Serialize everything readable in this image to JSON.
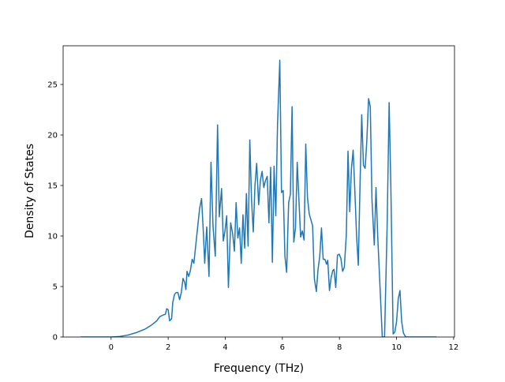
{
  "chart_data": {
    "type": "line",
    "xlabel": "Frequency (THz)",
    "ylabel": "Density of States",
    "x": [
      -1.06,
      0,
      0.3,
      0.6,
      0.9,
      1.2,
      1.4,
      1.6,
      1.7,
      1.8,
      1.9,
      1.95,
      2.0,
      2.05,
      2.12,
      2.16,
      2.22,
      2.28,
      2.34,
      2.4,
      2.46,
      2.52,
      2.58,
      2.62,
      2.66,
      2.72,
      2.78,
      2.84,
      2.9,
      3.1,
      3.17,
      3.23,
      3.28,
      3.35,
      3.43,
      3.5,
      3.57,
      3.65,
      3.73,
      3.79,
      3.87,
      3.93,
      3.99,
      4.05,
      4.11,
      4.19,
      4.26,
      4.32,
      4.38,
      4.44,
      4.5,
      4.56,
      4.62,
      4.68,
      4.74,
      4.8,
      4.86,
      4.92,
      4.98,
      5.04,
      5.1,
      5.17,
      5.23,
      5.29,
      5.35,
      5.41,
      5.47,
      5.53,
      5.59,
      5.65,
      5.71,
      5.77,
      5.83,
      5.91,
      5.97,
      6.03,
      6.09,
      6.15,
      6.22,
      6.28,
      6.34,
      6.4,
      6.46,
      6.52,
      6.58,
      6.64,
      6.7,
      6.76,
      6.82,
      6.88,
      6.94,
      7.0,
      7.06,
      7.12,
      7.19,
      7.25,
      7.31,
      7.37,
      7.43,
      7.49,
      7.55,
      7.59,
      7.65,
      7.71,
      7.77,
      7.81,
      7.87,
      7.93,
      7.99,
      8.05,
      8.11,
      8.17,
      8.24,
      8.3,
      8.36,
      8.42,
      8.48,
      8.54,
      8.6,
      8.66,
      8.72,
      8.78,
      8.84,
      8.9,
      8.96,
      9.02,
      9.08,
      9.14,
      9.22,
      9.28,
      9.34,
      9.42,
      9.5,
      9.58,
      9.67,
      9.74,
      9.8,
      9.88,
      9.94,
      10.0,
      10.06,
      10.12,
      10.18,
      10.24,
      10.32,
      11.4
    ],
    "series": [
      {
        "name": "DOS",
        "color": "#1f77b4",
        "values": [
          0,
          0,
          0.05,
          0.2,
          0.45,
          0.8,
          1.15,
          1.6,
          2.0,
          2.15,
          2.25,
          2.8,
          2.7,
          1.6,
          1.8,
          3.4,
          4.2,
          4.4,
          4.4,
          3.7,
          4.4,
          5.8,
          5.4,
          4.7,
          6.5,
          6.0,
          6.6,
          7.7,
          7.3,
          12.7,
          13.7,
          10.5,
          7.3,
          10.9,
          6.0,
          17.3,
          11.0,
          8.0,
          21.0,
          11.9,
          14.7,
          9.5,
          10.5,
          12.0,
          4.9,
          11.3,
          10.2,
          8.5,
          13.3,
          9.8,
          10.8,
          7.3,
          12.1,
          8.8,
          14.2,
          9.0,
          19.5,
          13.6,
          10.4,
          15.0,
          17.2,
          13.1,
          15.5,
          16.4,
          14.8,
          15.5,
          15.9,
          11.3,
          16.8,
          7.4,
          16.9,
          12.0,
          21.0,
          27.4,
          14.3,
          14.5,
          8.0,
          6.4,
          13.3,
          14.1,
          22.8,
          9.4,
          10.8,
          17.3,
          13.6,
          9.9,
          10.5,
          9.6,
          19.1,
          13.8,
          12.2,
          11.6,
          11.0,
          5.8,
          4.5,
          6.7,
          8.0,
          10.8,
          7.7,
          7.7,
          7.2,
          7.6,
          4.6,
          5.9,
          6.6,
          6.7,
          4.9,
          8.1,
          8.2,
          7.8,
          6.5,
          6.9,
          10.1,
          18.4,
          12.4,
          16.7,
          18.5,
          14.4,
          10.0,
          7.1,
          15.0,
          22.0,
          17.0,
          16.7,
          19.5,
          23.6,
          22.8,
          13.5,
          9.1,
          14.8,
          10.0,
          5.0,
          0,
          0,
          11.0,
          23.2,
          15.0,
          0.3,
          0.5,
          1.5,
          3.8,
          4.6,
          1.5,
          0.4,
          0,
          0
        ]
      }
    ],
    "xlim": [
      -1.68,
      12.03
    ],
    "ylim": [
      0,
      28.83
    ],
    "xticks": [
      0,
      2,
      4,
      6,
      8,
      10,
      12
    ],
    "yticks": [
      0,
      5,
      10,
      15,
      20,
      25
    ]
  }
}
